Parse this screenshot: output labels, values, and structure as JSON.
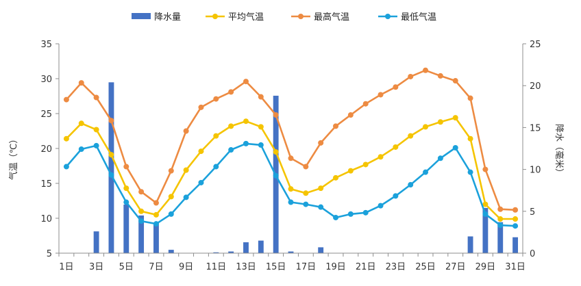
{
  "chart_data": {
    "type": "bar+line",
    "title": "",
    "days": [
      1,
      2,
      3,
      4,
      5,
      6,
      7,
      8,
      9,
      10,
      11,
      12,
      13,
      14,
      15,
      16,
      17,
      18,
      19,
      20,
      21,
      22,
      23,
      24,
      25,
      26,
      27,
      28,
      29,
      30,
      31
    ],
    "x_tick_labels": [
      "1日",
      "3日",
      "5日",
      "7日",
      "9日",
      "11日",
      "13日",
      "15日",
      "17日",
      "19日",
      "21日",
      "23日",
      "25日",
      "27日",
      "29日",
      "31日"
    ],
    "ylabel_left": "气温（℃）",
    "ylabel_right": "降水（毫米）",
    "ylim_left": [
      5,
      35
    ],
    "ylim_right": [
      0,
      25
    ],
    "yticks_left": [
      5,
      10,
      15,
      20,
      25,
      30,
      35
    ],
    "yticks_right": [
      0,
      5,
      10,
      15,
      20,
      25
    ],
    "series": [
      {
        "name": "降水量",
        "kind": "bar",
        "axis": "right",
        "color": "#4472C4",
        "values": [
          0,
          0,
          2.6,
          20.4,
          5.8,
          4.5,
          3.6,
          0.4,
          0,
          0,
          0.1,
          0.2,
          1.3,
          1.5,
          18.8,
          0.2,
          0,
          0.7,
          0,
          0,
          0,
          0,
          0,
          0,
          0,
          0,
          0,
          2.0,
          5.4,
          3.7,
          1.9
        ]
      },
      {
        "name": "平均气温",
        "kind": "line",
        "axis": "left",
        "color": "#F5C400",
        "values": [
          21.4,
          23.6,
          22.7,
          19.1,
          14.3,
          11.0,
          10.5,
          13.1,
          16.9,
          19.6,
          21.8,
          23.2,
          23.9,
          23.1,
          19.5,
          14.2,
          13.6,
          14.3,
          15.8,
          16.8,
          17.7,
          18.8,
          20.2,
          21.8,
          23.1,
          23.8,
          24.4,
          21.4,
          12.0,
          9.9,
          9.9
        ]
      },
      {
        "name": "最高气温",
        "kind": "line",
        "axis": "left",
        "color": "#ED8B42",
        "values": [
          27.0,
          29.4,
          27.3,
          24.0,
          17.4,
          13.8,
          12.2,
          16.8,
          22.5,
          25.9,
          27.1,
          28.1,
          29.6,
          27.4,
          24.8,
          18.6,
          17.4,
          20.8,
          23.2,
          24.8,
          26.4,
          27.7,
          28.8,
          30.3,
          31.2,
          30.4,
          29.7,
          27.2,
          17.0,
          11.3,
          11.2
        ]
      },
      {
        "name": "最低气温",
        "kind": "line",
        "axis": "left",
        "color": "#1BA1DB",
        "values": [
          17.4,
          19.9,
          20.4,
          16.2,
          12.3,
          9.6,
          9.2,
          10.6,
          13.0,
          15.1,
          17.4,
          19.8,
          20.7,
          20.5,
          16.1,
          12.3,
          12.0,
          11.6,
          10.1,
          10.6,
          10.8,
          11.8,
          13.2,
          14.8,
          16.6,
          18.6,
          20.1,
          16.6,
          10.6,
          9.0,
          8.9
        ]
      }
    ],
    "legend": [
      "降水量",
      "平均气温",
      "最高气温",
      "最低气温"
    ],
    "legend_position": "top"
  }
}
